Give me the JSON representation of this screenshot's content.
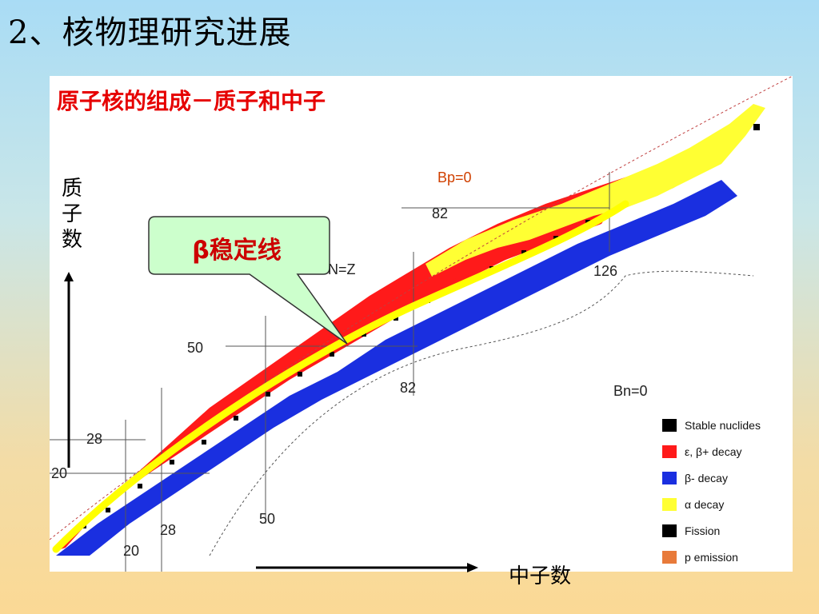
{
  "slide": {
    "title": "2、核物理研究进展"
  },
  "figure": {
    "heading": "原子核的组成－质子和中子",
    "y_axis_label": "质子数",
    "x_axis_label": "中子数",
    "callout": "β稳定线",
    "labels": {
      "bp0": "Bp=0",
      "bn0": "Bn=0",
      "nz": "N=Z",
      "z82": "82",
      "z50": "50",
      "z28": "28",
      "z20": "20",
      "n126": "126",
      "n82": "82",
      "n50": "50",
      "n28": "28",
      "n20": "20"
    },
    "legend": [
      {
        "label": "Stable nuclides",
        "color": "#000000"
      },
      {
        "label": "ε, β+ decay",
        "color": "#ff1a1a"
      },
      {
        "label": "β- decay",
        "color": "#1a2fe0"
      },
      {
        "label": "α decay",
        "color": "#ffff33"
      },
      {
        "label": "Fission",
        "color": "#000000"
      },
      {
        "label": "p emission",
        "color": "#e87a3a"
      }
    ],
    "colors": {
      "proton_rich": "#ff1a1a",
      "neutron_rich": "#1a2fe0",
      "alpha": "#ffff33",
      "stable": "#000000",
      "stability_line": "#ffff00",
      "callout_fill": "#ccffcc"
    }
  }
}
